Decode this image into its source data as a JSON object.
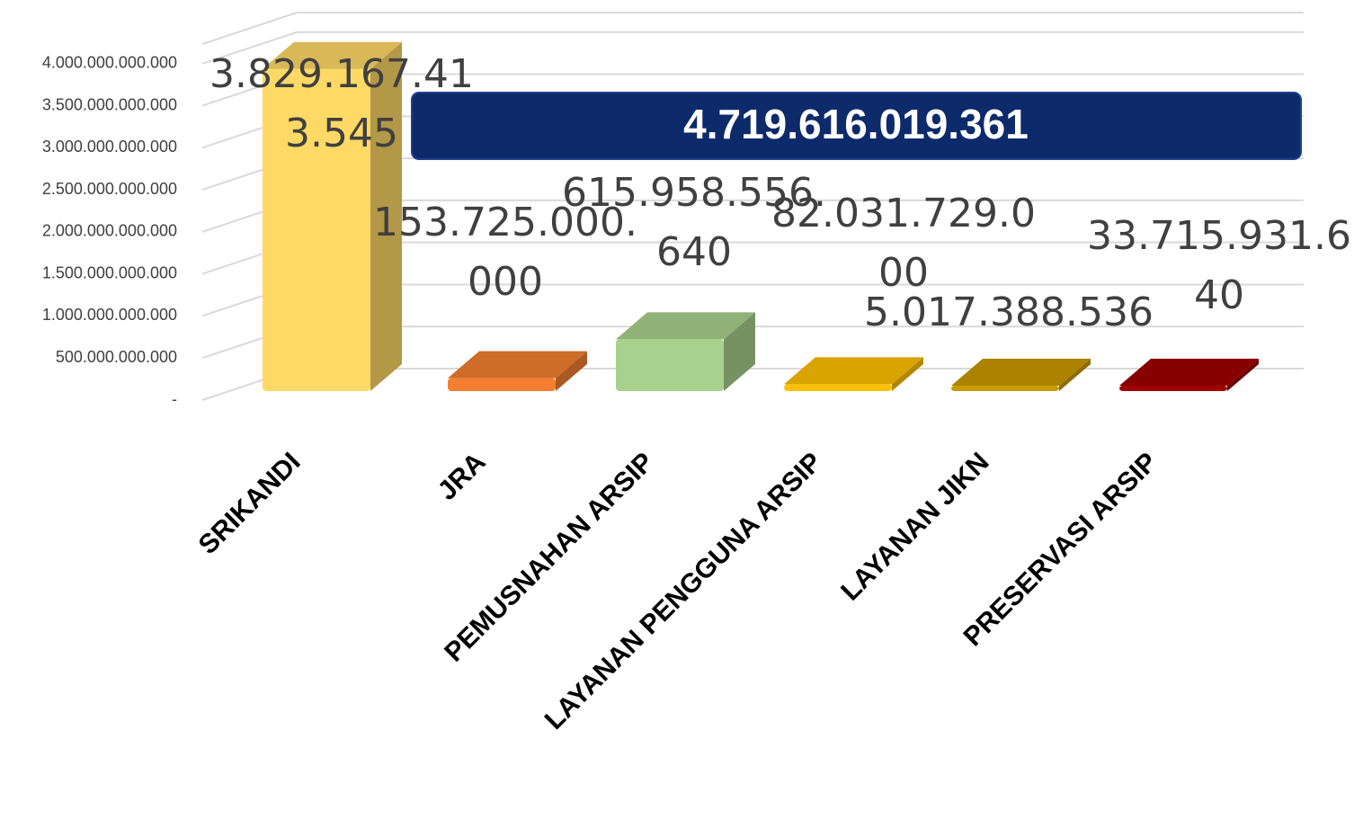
{
  "chart_data": {
    "type": "bar3d",
    "categories": [
      "SRIKANDI",
      "JRA",
      "PEMUSNAHAN ARSIP",
      "LAYANAN PENGGUNA ARSIP",
      "LAYANAN JIKN",
      "PRESERVASI ARSIP"
    ],
    "values": [
      3829167413545,
      153725000000,
      615958556640,
      82031729000,
      5017388536,
      33715931640
    ],
    "value_labels": [
      "3.829.167.413.545",
      "153.725.000.000",
      "615.958.556.640",
      "82.031.729.000",
      "5.017.388.536",
      "33.715.931.640"
    ],
    "colors": [
      "#ffd966",
      "#f47f30",
      "#a9d18e",
      "#ffc000",
      "#c99a00",
      "#a00000"
    ],
    "ylim": [
      0,
      4500000000000
    ],
    "yticks": [
      {
        "value": 0,
        "label": "-"
      },
      {
        "value": 500000000000,
        "label": "500.000.000.000"
      },
      {
        "value": 1000000000000,
        "label": "1.000.000.000.000"
      },
      {
        "value": 1500000000000,
        "label": "1.500.000.000.000"
      },
      {
        "value": 2000000000000,
        "label": "2.000.000.000.000"
      },
      {
        "value": 2500000000000,
        "label": "2.500.000.000.000"
      },
      {
        "value": 3000000000000,
        "label": "3.000.000.000.000"
      },
      {
        "value": 3500000000000,
        "label": "3.500.000.000.000"
      },
      {
        "value": 4000000000000,
        "label": "4.000.000.000.000"
      }
    ],
    "annotation": "4.719.616.019.361",
    "grid": true
  }
}
